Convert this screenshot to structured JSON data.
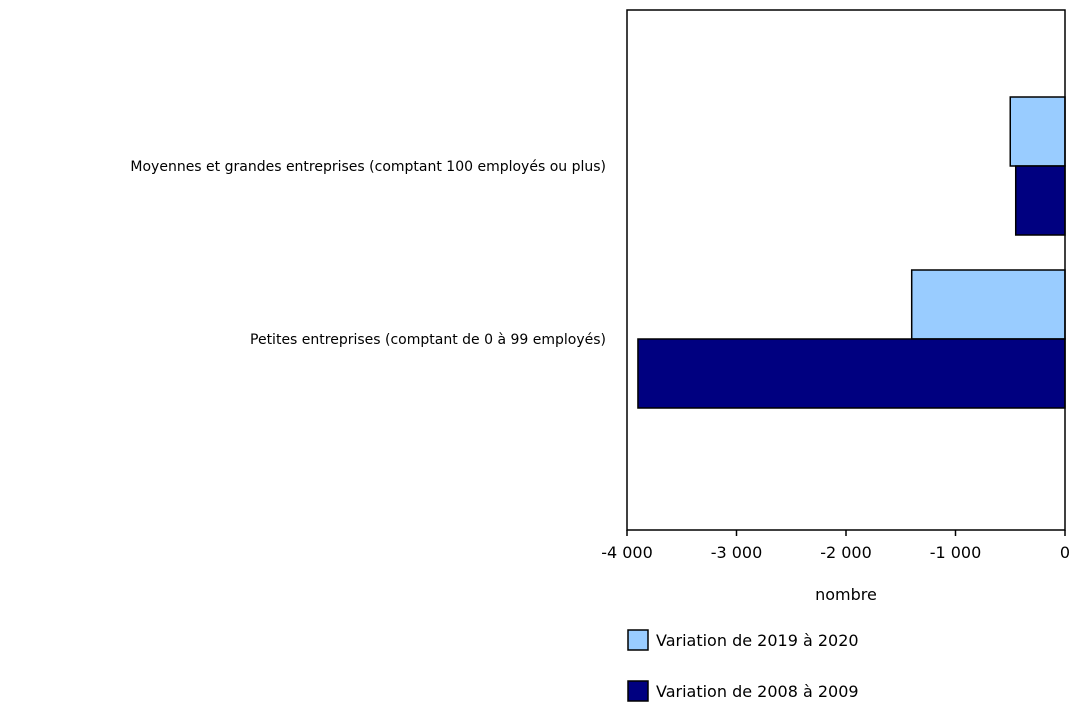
{
  "chart_data": {
    "type": "bar",
    "orientation": "horizontal",
    "categories": [
      "Moyennes et grandes entreprises (comptant 100 employés ou plus)",
      "Petites entreprises (comptant de 0 à 99 employés)"
    ],
    "series": [
      {
        "name": "Variation de 2019 à 2020",
        "color": "#99ccff",
        "values": [
          -500,
          -1400
        ]
      },
      {
        "name": "Variation de 2008 à 2009",
        "color": "#000080",
        "values": [
          -450,
          -3900
        ]
      }
    ],
    "xlabel": "nombre",
    "xlim": [
      -4000,
      0
    ],
    "xticks": [
      {
        "value": -4000,
        "label": "-4 000"
      },
      {
        "value": -3000,
        "label": "-3 000"
      },
      {
        "value": -2000,
        "label": "-2 000"
      },
      {
        "value": -1000,
        "label": "-1 000"
      },
      {
        "value": 0,
        "label": "0"
      }
    ],
    "grid": false,
    "legend_position": "bottom"
  }
}
